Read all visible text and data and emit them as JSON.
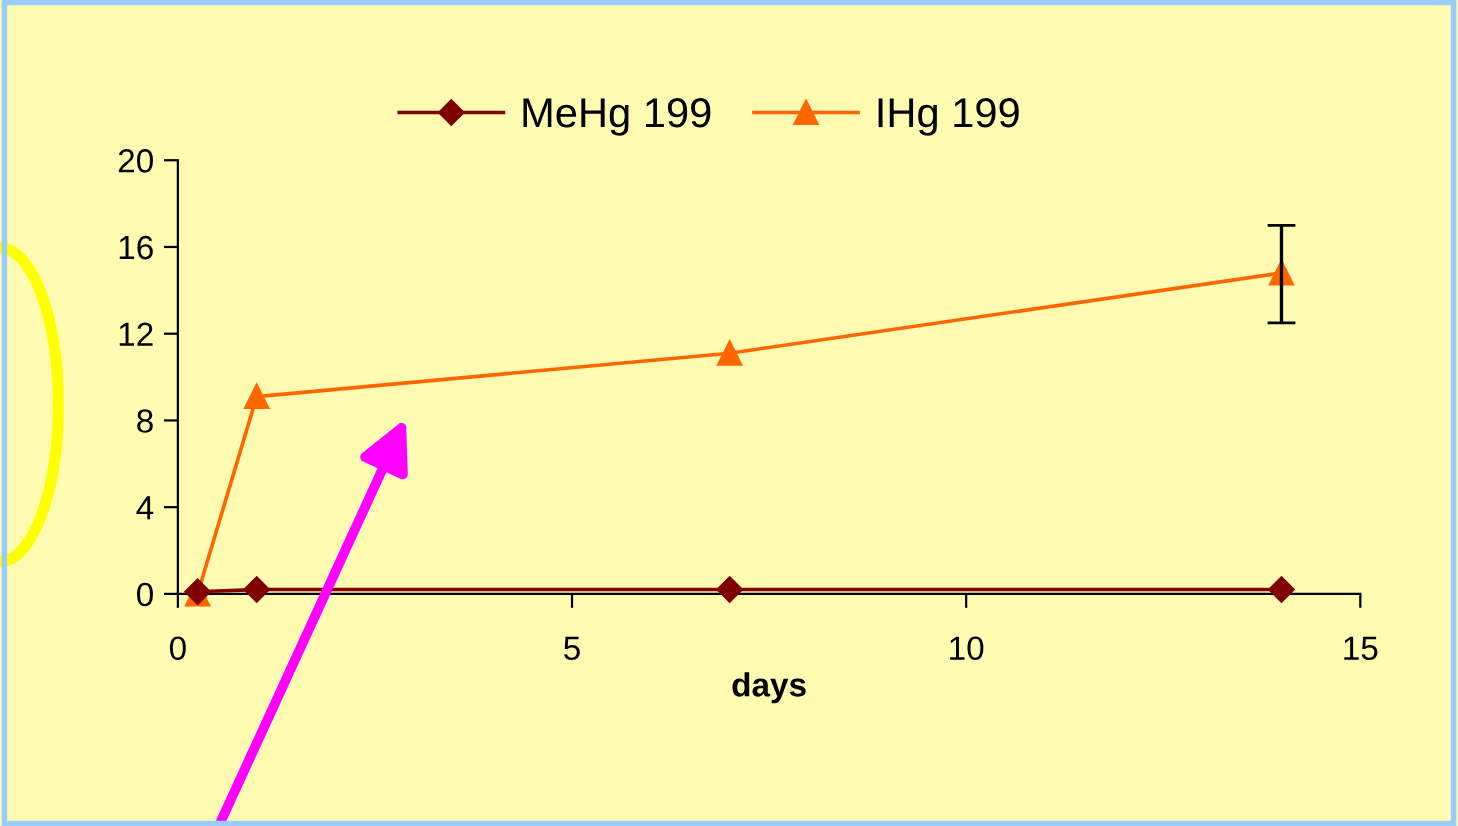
{
  "chart_data": {
    "type": "line",
    "xlabel": "days",
    "x": [
      0.25,
      1,
      7,
      14
    ],
    "series": [
      {
        "name": "MeHg 199",
        "color": "#800000",
        "marker": "diamond",
        "values": [
          0.1,
          0.2,
          0.2,
          0.2
        ]
      },
      {
        "name": "IHg 199",
        "color": "#ff6600",
        "marker": "triangle",
        "values": [
          0,
          9.1,
          11.1,
          14.8
        ],
        "errors": [
          null,
          null,
          null,
          [
            12.5,
            17
          ]
        ]
      }
    ],
    "xlim": [
      0,
      15
    ],
    "xticks": [
      0,
      5,
      10,
      15
    ],
    "ylim": [
      0,
      20
    ],
    "yticks": [
      0,
      4,
      8,
      12,
      16,
      20
    ],
    "grid": false,
    "legend": "top",
    "line_style": "solid"
  }
}
